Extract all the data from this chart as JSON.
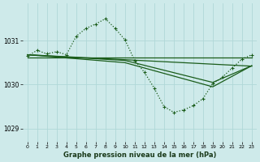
{
  "bg_color": "#ceeaea",
  "grid_color": "#b0d8d8",
  "line_color": "#1a5c1a",
  "title": "Graphe pression niveau de la mer (hPa)",
  "ylabel_ticks": [
    1029,
    1030,
    1031
  ],
  "xlim": [
    -0.5,
    23.5
  ],
  "ylim": [
    1028.7,
    1031.85
  ],
  "series": {
    "main": {
      "x": [
        0,
        1,
        2,
        3,
        4,
        5,
        6,
        7,
        8,
        9,
        10,
        11,
        12,
        13,
        14,
        15,
        16,
        17,
        18,
        19,
        20,
        21,
        22,
        23
      ],
      "y": [
        1030.65,
        1030.78,
        1030.7,
        1030.75,
        1030.68,
        1031.1,
        1031.28,
        1031.38,
        1031.5,
        1031.28,
        1031.02,
        1030.55,
        1030.28,
        1029.92,
        1029.5,
        1029.37,
        1029.42,
        1029.52,
        1029.68,
        1030.02,
        1030.17,
        1030.38,
        1030.58,
        1030.68
      ]
    },
    "flat1": {
      "x": [
        0,
        10,
        23
      ],
      "y": [
        1030.62,
        1030.62,
        1030.62
      ]
    },
    "diag1": {
      "x": [
        0,
        23
      ],
      "y": [
        1030.68,
        1030.42
      ]
    },
    "diag2": {
      "x": [
        0,
        10,
        19,
        23
      ],
      "y": [
        1030.68,
        1030.55,
        1030.05,
        1030.43
      ]
    },
    "diag3": {
      "x": [
        0,
        10,
        19,
        23
      ],
      "y": [
        1030.68,
        1030.5,
        1029.95,
        1030.43
      ]
    }
  }
}
